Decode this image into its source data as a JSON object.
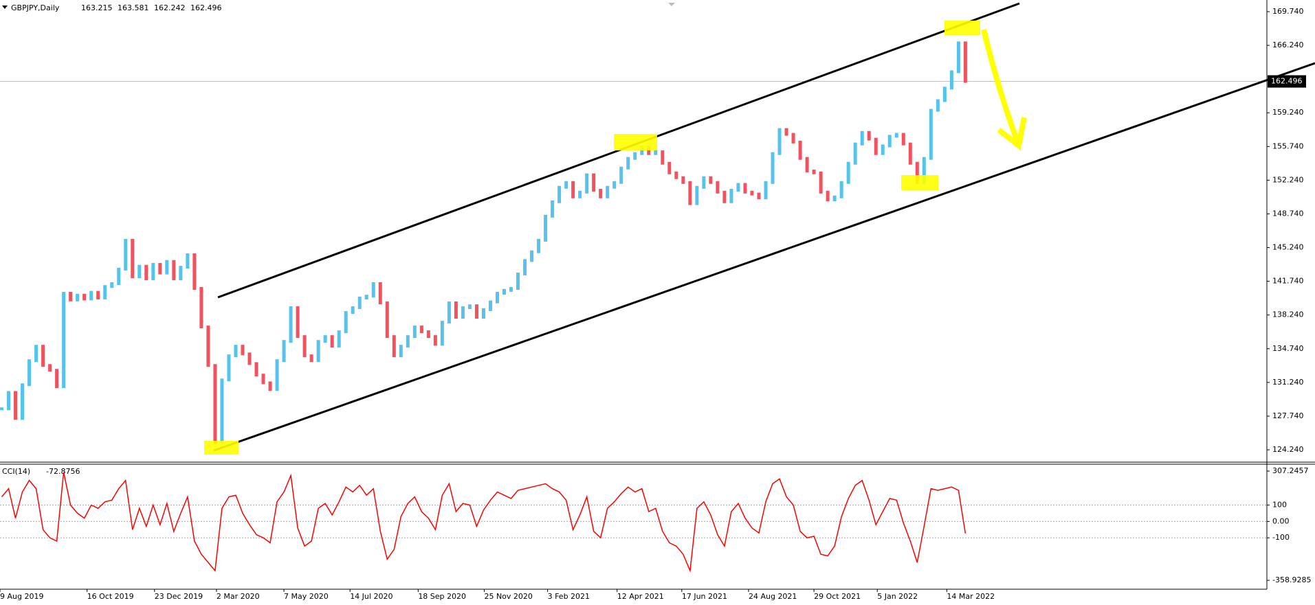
{
  "chart_data": [
    {
      "type": "candlestick",
      "title": "GBPJPY,Daily",
      "header_ohlc": [
        163.215,
        163.581,
        162.242
      ],
      "colors": {
        "up": "#56c3ec",
        "down": "#f0525e"
      },
      "xlim": [
        -0.25,
        183.8
      ],
      "xticks": [
        {
          "value": -0.25,
          "label": "9 Aug 2019"
        },
        {
          "value": 12.4,
          "label": "16 Oct 2019"
        },
        {
          "value": 22.2,
          "label": "23 Dec 2019"
        },
        {
          "value": 31.2,
          "label": "2 Mar 2020"
        },
        {
          "value": 41,
          "label": "7 May 2020"
        },
        {
          "value": 50.6,
          "label": "14 Jul 2020"
        },
        {
          "value": 60.5,
          "label": "18 Sep 2020"
        },
        {
          "value": 70.1,
          "label": "25 Nov 2020"
        },
        {
          "value": 79.3,
          "label": "3 Feb 2021"
        },
        {
          "value": 89.4,
          "label": "12 Apr 2021"
        },
        {
          "value": 98.8,
          "label": "17 Jun 2021"
        },
        {
          "value": 108.5,
          "label": "24 Aug 2021"
        },
        {
          "value": 118,
          "label": "29 Oct 2021"
        },
        {
          "value": 127.2,
          "label": "5 Jan 2022"
        },
        {
          "value": 137.3,
          "label": "14 Mar 2022"
        }
      ],
      "ylim": [
        122.96,
        170.95
      ],
      "yticks": [
        {
          "value": 169.74,
          "label": "169.740"
        },
        {
          "value": 166.24,
          "label": "166.240"
        },
        {
          "value": 159.24,
          "label": "159.240"
        },
        {
          "value": 155.74,
          "label": "155.740"
        },
        {
          "value": 152.24,
          "label": "152.240"
        },
        {
          "value": 148.74,
          "label": "148.740"
        },
        {
          "value": 145.24,
          "label": "145.240"
        },
        {
          "value": 141.74,
          "label": "141.740"
        },
        {
          "value": 138.24,
          "label": "138.240"
        },
        {
          "value": 134.74,
          "label": "134.740"
        },
        {
          "value": 131.24,
          "label": "131.240"
        },
        {
          "value": 127.74,
          "label": "127.740"
        },
        {
          "value": 124.24,
          "label": "124.240"
        }
      ],
      "values": [
        128.5,
        130.2,
        127.5,
        131.0,
        133.5,
        135.0,
        133.0,
        132.5,
        130.8,
        140.5,
        139.8,
        140.3,
        139.9,
        140.6,
        140.0,
        141.2,
        141.5,
        143.0,
        146.0,
        142.2,
        143.3,
        142.0,
        143.5,
        142.6,
        143.8,
        142.0,
        143.2,
        144.5,
        141.0,
        137.0,
        133.0,
        125.0,
        131.5,
        134.0,
        135.0,
        134.2,
        133.2,
        132.0,
        131.2,
        130.5,
        133.5,
        135.5,
        139.0,
        136.0,
        134.0,
        133.5,
        135.5,
        136.0,
        135.0,
        136.5,
        138.5,
        139.0,
        140.0,
        140.2,
        141.5,
        139.5,
        136.0,
        134.0,
        135.0,
        136.0,
        137.0,
        136.5,
        136.0,
        135.2,
        137.5,
        139.5,
        138.0,
        139.0,
        139.2,
        138.0,
        138.8,
        139.6,
        140.5,
        140.8,
        141.0,
        142.5,
        143.9,
        144.8,
        146.0,
        148.5,
        150.0,
        151.5,
        152.0,
        150.5,
        151.0,
        152.8,
        151.2,
        150.5,
        151.5,
        152.0,
        153.5,
        154.5,
        155.0,
        155.7,
        155.0,
        155.2,
        154.0,
        153.0,
        152.5,
        152.0,
        149.8,
        151.5,
        152.5,
        152.0,
        151.0,
        150.0,
        151.2,
        151.8,
        151.0,
        150.8,
        150.4,
        152.0,
        155.0,
        157.5,
        157.0,
        156.2,
        154.5,
        153.2,
        153.0,
        151.0,
        150.2,
        150.5,
        152.0,
        154.0,
        156.0,
        157.2,
        156.5,
        155.0,
        155.8,
        156.8,
        157.0,
        156.0,
        154.0,
        152.0,
        154.5,
        159.5,
        160.5,
        161.8,
        163.5,
        166.5,
        162.496
      ]
    },
    {
      "type": "line",
      "title": "CCI(14)",
      "color": "#ff0000",
      "ylim": [
        -413,
        349
      ],
      "yticks": [
        307.2457,
        100,
        {
          "value": 0,
          "label": "0.00"
        },
        -100,
        -358.9285
      ],
      "values": [
        150,
        200,
        20,
        180,
        250,
        200,
        -50,
        -100,
        -120,
        300,
        100,
        50,
        20,
        100,
        80,
        120,
        130,
        200,
        250,
        -50,
        80,
        -30,
        100,
        -20,
        110,
        -60,
        50,
        150,
        -120,
        -200,
        -250,
        -300,
        80,
        150,
        160,
        50,
        -20,
        -80,
        -100,
        -130,
        120,
        180,
        280,
        -40,
        -150,
        -120,
        80,
        110,
        40,
        120,
        210,
        180,
        220,
        160,
        200,
        -60,
        -230,
        -170,
        30,
        110,
        150,
        60,
        20,
        -50,
        160,
        230,
        60,
        110,
        100,
        -30,
        70,
        130,
        180,
        160,
        140,
        190,
        200,
        210,
        220,
        230,
        200,
        180,
        130,
        -50,
        40,
        150,
        -60,
        -100,
        80,
        120,
        170,
        210,
        180,
        200,
        60,
        80,
        -60,
        -130,
        -150,
        -200,
        -300,
        80,
        120,
        40,
        -80,
        -150,
        60,
        110,
        20,
        -40,
        -70,
        120,
        230,
        260,
        150,
        100,
        -60,
        -100,
        -90,
        -200,
        -210,
        -150,
        30,
        140,
        220,
        250,
        130,
        -20,
        60,
        140,
        130,
        -10,
        -120,
        -250,
        -30,
        200,
        190,
        200,
        210,
        190,
        -72.8756
      ]
    }
  ]
}
